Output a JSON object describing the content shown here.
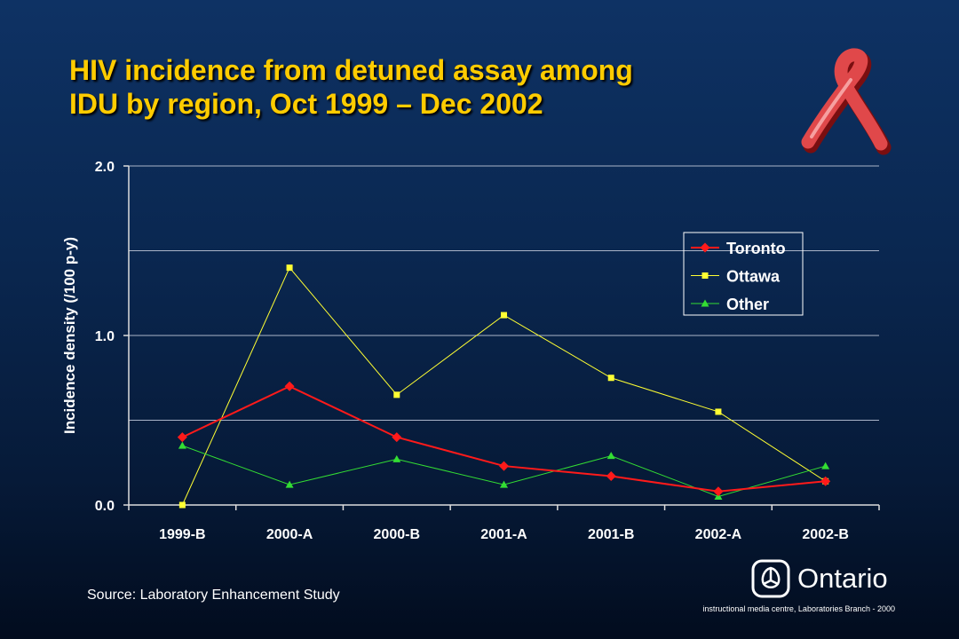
{
  "slide": {
    "title_line1": "HIV incidence from detuned assay among",
    "title_line2": "IDU by region, Oct 1999 – Dec 2002",
    "source": "Source: Laboratory Enhancement Study",
    "logo_text": "Ontario",
    "credit": "instructional media centre, Laboratories Branch - 2000",
    "icons": [
      "red-ribbon-icon",
      "ontario-trillium-icon"
    ]
  },
  "colors": {
    "title": "#ffcc00",
    "toronto": "#ff1a1a",
    "ottawa": "#ffff33",
    "other": "#33dd33",
    "grid": "#aab4c8"
  },
  "chart_data": {
    "type": "line",
    "categories": [
      "1999-B",
      "2000-A",
      "2000-B",
      "2001-A",
      "2001-B",
      "2002-A",
      "2002-B"
    ],
    "series": [
      {
        "name": "Toronto",
        "marker": "diamond",
        "values": [
          0.4,
          0.7,
          0.4,
          0.23,
          0.17,
          0.08,
          0.14
        ]
      },
      {
        "name": "Ottawa",
        "marker": "square",
        "values": [
          0.0,
          1.4,
          0.65,
          1.12,
          0.75,
          0.55,
          0.14
        ]
      },
      {
        "name": "Other",
        "marker": "triangle",
        "values": [
          0.35,
          0.12,
          0.27,
          0.12,
          0.29,
          0.05,
          0.23
        ]
      }
    ],
    "ylabel": "Incidence density (/100 p-y)",
    "xlabel": "",
    "ylim": [
      0,
      2.0
    ],
    "yticks": [
      0.0,
      1.0,
      2.0
    ],
    "ytick_labels": [
      "0.0",
      "1.0",
      "2.0"
    ],
    "gridlines": [
      0.5,
      1.0,
      1.5,
      2.0
    ],
    "grid": true,
    "legend": "upper-right"
  }
}
